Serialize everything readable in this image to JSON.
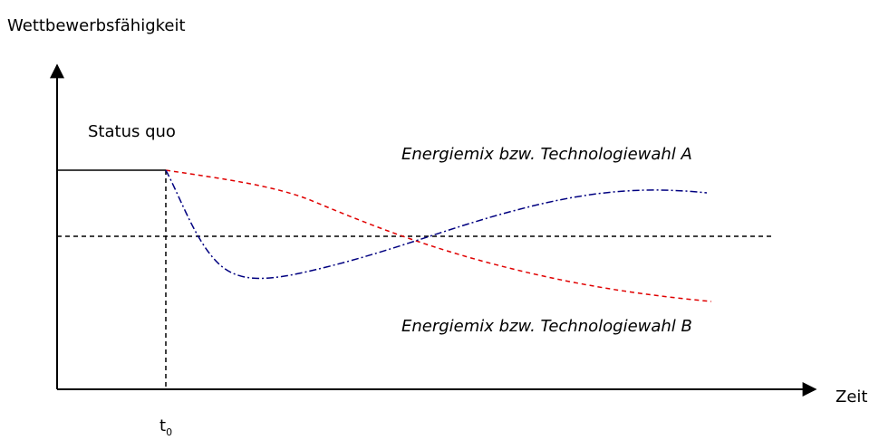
{
  "y_axis_label": "Wettbewerbsfähigkeit",
  "status_label": "Status quo",
  "curve_a_label": "Energiemix bzw. Technologiewahl A",
  "curve_b_label": "Energiemix bzw. Technologiewahl B",
  "x_axis_label": "Zeit",
  "t0": {
    "base": "t",
    "sub": "0"
  }
}
